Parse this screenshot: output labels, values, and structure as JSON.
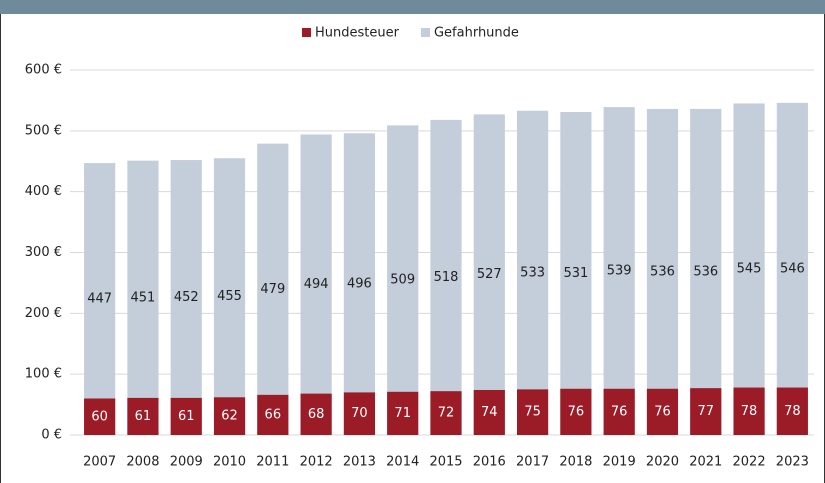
{
  "chart_data": {
    "type": "bar",
    "overlap": true,
    "categories": [
      "2007",
      "2008",
      "2009",
      "2010",
      "2011",
      "2012",
      "2013",
      "2014",
      "2015",
      "2016",
      "2017",
      "2018",
      "2019",
      "2020",
      "2021",
      "2022",
      "2023"
    ],
    "series": [
      {
        "name": "Gefahrhunde",
        "color": "#c3ceda",
        "values": [
          447,
          451,
          452,
          455,
          479,
          494,
          496,
          509,
          518,
          527,
          533,
          531,
          539,
          536,
          536,
          545,
          546
        ]
      },
      {
        "name": "Hundesteuer",
        "color": "#9b1b27",
        "values": [
          60,
          61,
          61,
          62,
          66,
          68,
          70,
          71,
          72,
          74,
          75,
          76,
          76,
          76,
          77,
          78,
          78
        ]
      }
    ],
    "legend_order": [
      1,
      0
    ],
    "ylim": [
      0,
      600
    ],
    "yticks": [
      {
        "value": 0,
        "label": "0 €"
      },
      {
        "value": 100,
        "label": "100 €"
      },
      {
        "value": 200,
        "label": "200 €"
      },
      {
        "value": 300,
        "label": "300 €"
      },
      {
        "value": 400,
        "label": "400 €"
      },
      {
        "value": 500,
        "label": "500 €"
      },
      {
        "value": 600,
        "label": "600 €"
      }
    ],
    "grid": true
  }
}
